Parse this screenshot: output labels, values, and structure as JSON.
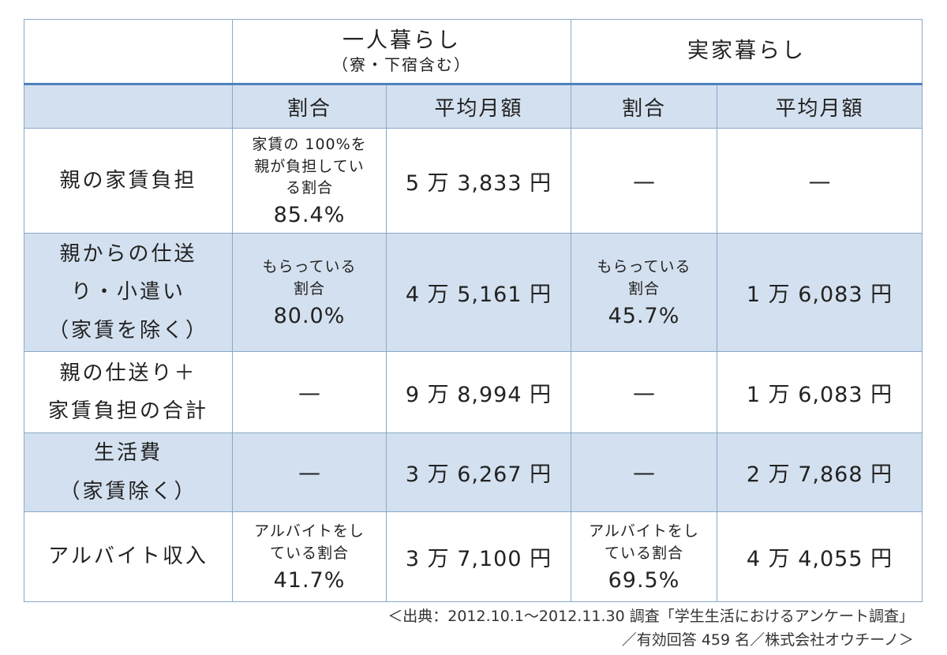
{
  "header": {
    "corner": "",
    "group_alone": "一人暮らし",
    "group_alone_sub": "（寮・下宿含む）",
    "group_home": "実家暮らし"
  },
  "subheader": {
    "corner": "",
    "alone_ratio": "割合",
    "alone_amount": "平均月額",
    "home_ratio": "割合",
    "home_amount": "平均月額"
  },
  "rows": [
    {
      "label_lines": [
        "親の家賃負担"
      ],
      "alone_ratio_desc": [
        "家賃の 100%を",
        "親が負担してい",
        "る割合"
      ],
      "alone_ratio_pct": "85.4%",
      "alone_amount": "5 万 3,833 円",
      "home_ratio": "—",
      "home_amount": "—"
    },
    {
      "label_lines": [
        "親からの仕送",
        "り・小遣い",
        "（家賃を除く）"
      ],
      "alone_ratio_desc": [
        "もらっている",
        "割合"
      ],
      "alone_ratio_pct": "80.0%",
      "alone_amount": "4 万 5,161 円",
      "home_ratio_desc": [
        "もらっている",
        "割合"
      ],
      "home_ratio_pct": "45.7%",
      "home_amount": "1 万 6,083 円"
    },
    {
      "label_lines": [
        "親の仕送り＋",
        "家賃負担の合計"
      ],
      "alone_ratio": "—",
      "alone_amount": "9 万 8,994 円",
      "home_ratio": "—",
      "home_amount": "1 万 6,083 円"
    },
    {
      "label_lines": [
        "生活費",
        "（家賃除く）"
      ],
      "alone_ratio": "—",
      "alone_amount": "3 万 6,267 円",
      "home_ratio": "—",
      "home_amount": "2 万 7,868 円"
    },
    {
      "label_lines": [
        "アルバイト収入"
      ],
      "alone_ratio_desc": [
        "アルバイトをし",
        "ている割合"
      ],
      "alone_ratio_pct": "41.7%",
      "alone_amount": "3 万 7,100 円",
      "home_ratio_desc": [
        "アルバイトをし",
        "ている割合"
      ],
      "home_ratio_pct": "69.5%",
      "home_amount": "4 万 4,055 円"
    }
  ],
  "source": {
    "line1": "＜出典：2012.10.1～2012.11.30 調査「学生生活におけるアンケート調査」",
    "line2": "／有効回答 459 名／株式会社オウチーノ＞"
  }
}
